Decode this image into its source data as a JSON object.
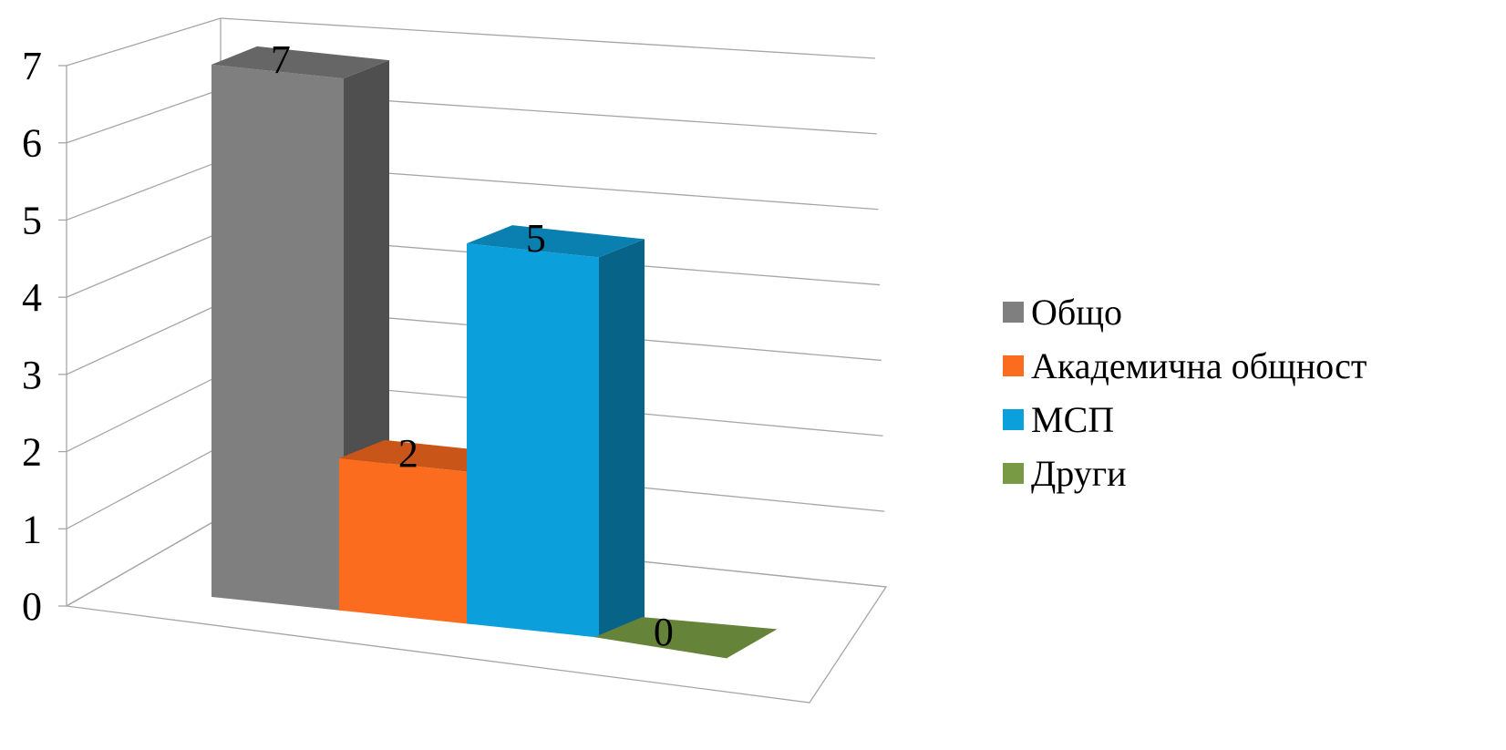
{
  "chart_data": {
    "type": "bar",
    "categories": [
      ""
    ],
    "series": [
      {
        "name": "Общо",
        "values": [
          7
        ],
        "color": "#7f7f80",
        "label": "7"
      },
      {
        "name": "Академична общност",
        "values": [
          2
        ],
        "color": "#fb6c1e",
        "label": "2"
      },
      {
        "name": "МСП",
        "values": [
          5
        ],
        "color": "#0ba0dc",
        "label": "5"
      },
      {
        "name": "Други",
        "values": [
          0
        ],
        "color": "#789a44",
        "label": "0"
      }
    ],
    "y_ticks": [
      "0",
      "1",
      "2",
      "3",
      "4",
      "5",
      "6",
      "7"
    ],
    "ylim": [
      0,
      7
    ],
    "grid": true,
    "legend_position": "right",
    "style": "3d-column"
  }
}
